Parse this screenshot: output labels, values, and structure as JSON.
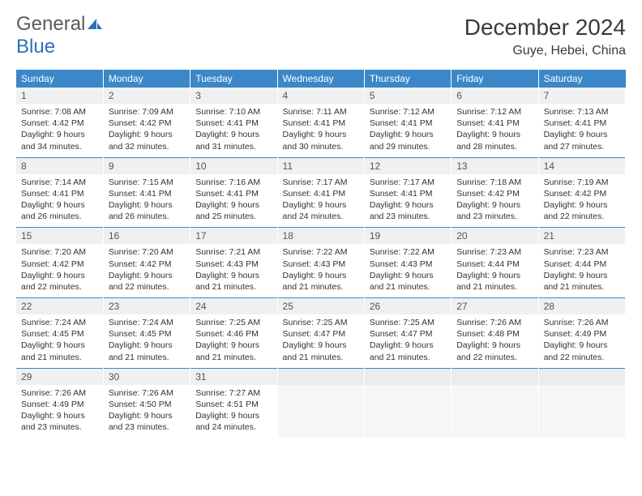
{
  "logo": {
    "text_general": "General",
    "text_blue": "Blue"
  },
  "title": "December 2024",
  "location": "Guye, Hebei, China",
  "header_bg": "#3b87c8",
  "header_fg": "#ffffff",
  "daynum_bg": "#eef0f1",
  "row_divider": "#3b87c8",
  "weekdays": [
    "Sunday",
    "Monday",
    "Tuesday",
    "Wednesday",
    "Thursday",
    "Friday",
    "Saturday"
  ],
  "weeks": [
    [
      {
        "n": "1",
        "sunrise": "7:08 AM",
        "sunset": "4:42 PM",
        "daylight": "9 hours and 34 minutes."
      },
      {
        "n": "2",
        "sunrise": "7:09 AM",
        "sunset": "4:42 PM",
        "daylight": "9 hours and 32 minutes."
      },
      {
        "n": "3",
        "sunrise": "7:10 AM",
        "sunset": "4:41 PM",
        "daylight": "9 hours and 31 minutes."
      },
      {
        "n": "4",
        "sunrise": "7:11 AM",
        "sunset": "4:41 PM",
        "daylight": "9 hours and 30 minutes."
      },
      {
        "n": "5",
        "sunrise": "7:12 AM",
        "sunset": "4:41 PM",
        "daylight": "9 hours and 29 minutes."
      },
      {
        "n": "6",
        "sunrise": "7:12 AM",
        "sunset": "4:41 PM",
        "daylight": "9 hours and 28 minutes."
      },
      {
        "n": "7",
        "sunrise": "7:13 AM",
        "sunset": "4:41 PM",
        "daylight": "9 hours and 27 minutes."
      }
    ],
    [
      {
        "n": "8",
        "sunrise": "7:14 AM",
        "sunset": "4:41 PM",
        "daylight": "9 hours and 26 minutes."
      },
      {
        "n": "9",
        "sunrise": "7:15 AM",
        "sunset": "4:41 PM",
        "daylight": "9 hours and 26 minutes."
      },
      {
        "n": "10",
        "sunrise": "7:16 AM",
        "sunset": "4:41 PM",
        "daylight": "9 hours and 25 minutes."
      },
      {
        "n": "11",
        "sunrise": "7:17 AM",
        "sunset": "4:41 PM",
        "daylight": "9 hours and 24 minutes."
      },
      {
        "n": "12",
        "sunrise": "7:17 AM",
        "sunset": "4:41 PM",
        "daylight": "9 hours and 23 minutes."
      },
      {
        "n": "13",
        "sunrise": "7:18 AM",
        "sunset": "4:42 PM",
        "daylight": "9 hours and 23 minutes."
      },
      {
        "n": "14",
        "sunrise": "7:19 AM",
        "sunset": "4:42 PM",
        "daylight": "9 hours and 22 minutes."
      }
    ],
    [
      {
        "n": "15",
        "sunrise": "7:20 AM",
        "sunset": "4:42 PM",
        "daylight": "9 hours and 22 minutes."
      },
      {
        "n": "16",
        "sunrise": "7:20 AM",
        "sunset": "4:42 PM",
        "daylight": "9 hours and 22 minutes."
      },
      {
        "n": "17",
        "sunrise": "7:21 AM",
        "sunset": "4:43 PM",
        "daylight": "9 hours and 21 minutes."
      },
      {
        "n": "18",
        "sunrise": "7:22 AM",
        "sunset": "4:43 PM",
        "daylight": "9 hours and 21 minutes."
      },
      {
        "n": "19",
        "sunrise": "7:22 AM",
        "sunset": "4:43 PM",
        "daylight": "9 hours and 21 minutes."
      },
      {
        "n": "20",
        "sunrise": "7:23 AM",
        "sunset": "4:44 PM",
        "daylight": "9 hours and 21 minutes."
      },
      {
        "n": "21",
        "sunrise": "7:23 AM",
        "sunset": "4:44 PM",
        "daylight": "9 hours and 21 minutes."
      }
    ],
    [
      {
        "n": "22",
        "sunrise": "7:24 AM",
        "sunset": "4:45 PM",
        "daylight": "9 hours and 21 minutes."
      },
      {
        "n": "23",
        "sunrise": "7:24 AM",
        "sunset": "4:45 PM",
        "daylight": "9 hours and 21 minutes."
      },
      {
        "n": "24",
        "sunrise": "7:25 AM",
        "sunset": "4:46 PM",
        "daylight": "9 hours and 21 minutes."
      },
      {
        "n": "25",
        "sunrise": "7:25 AM",
        "sunset": "4:47 PM",
        "daylight": "9 hours and 21 minutes."
      },
      {
        "n": "26",
        "sunrise": "7:25 AM",
        "sunset": "4:47 PM",
        "daylight": "9 hours and 21 minutes."
      },
      {
        "n": "27",
        "sunrise": "7:26 AM",
        "sunset": "4:48 PM",
        "daylight": "9 hours and 22 minutes."
      },
      {
        "n": "28",
        "sunrise": "7:26 AM",
        "sunset": "4:49 PM",
        "daylight": "9 hours and 22 minutes."
      }
    ],
    [
      {
        "n": "29",
        "sunrise": "7:26 AM",
        "sunset": "4:49 PM",
        "daylight": "9 hours and 23 minutes."
      },
      {
        "n": "30",
        "sunrise": "7:26 AM",
        "sunset": "4:50 PM",
        "daylight": "9 hours and 23 minutes."
      },
      {
        "n": "31",
        "sunrise": "7:27 AM",
        "sunset": "4:51 PM",
        "daylight": "9 hours and 24 minutes."
      },
      null,
      null,
      null,
      null
    ]
  ],
  "labels": {
    "sunrise": "Sunrise: ",
    "sunset": "Sunset: ",
    "daylight": "Daylight: "
  }
}
